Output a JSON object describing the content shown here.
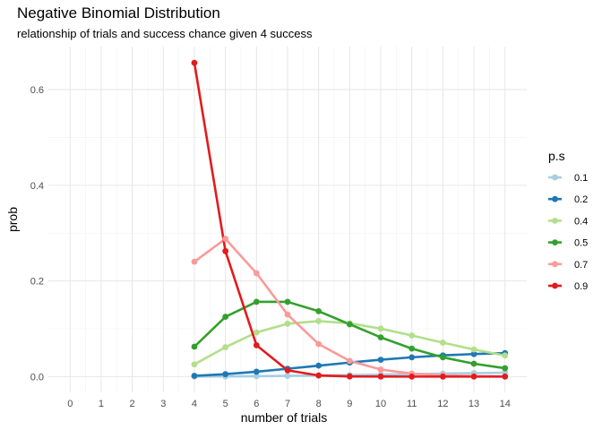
{
  "chart_data": {
    "type": "line",
    "title": "Negative Binomial Distribution",
    "subtitle": "relationship of trials and success chance given 4 success",
    "xlabel": "number of trials",
    "ylabel": "prob",
    "x_ticks": [
      0,
      1,
      2,
      3,
      4,
      5,
      6,
      7,
      8,
      9,
      10,
      11,
      12,
      13,
      14
    ],
    "y_ticks": [
      0.0,
      0.2,
      0.4,
      0.6
    ],
    "y_tick_labels": [
      "0.0",
      "0.2",
      "0.4",
      "0.6"
    ],
    "xlim": [
      -0.7,
      14.7
    ],
    "ylim": [
      -0.033,
      0.69
    ],
    "grid": true,
    "legend": {
      "title": "p.s",
      "placement": "right"
    },
    "x": [
      4,
      5,
      6,
      7,
      8,
      9,
      10,
      11,
      12,
      13,
      14
    ],
    "series": [
      {
        "name": "0.1",
        "color": "#a6cee3",
        "values": [
          0.0001,
          0.0004,
          0.0009,
          0.0015,
          0.0023,
          0.0032,
          0.0042,
          0.0052,
          0.0062,
          0.0072,
          0.0082
        ]
      },
      {
        "name": "0.2",
        "color": "#1f78b4",
        "values": [
          0.0016,
          0.0051,
          0.0102,
          0.0164,
          0.0229,
          0.0294,
          0.0352,
          0.0403,
          0.0443,
          0.0472,
          0.0491
        ]
      },
      {
        "name": "0.4",
        "color": "#b2df8a",
        "values": [
          0.0256,
          0.0614,
          0.0922,
          0.1106,
          0.1161,
          0.1115,
          0.1003,
          0.086,
          0.0709,
          0.0567,
          0.0441
        ]
      },
      {
        "name": "0.5",
        "color": "#33a02c",
        "values": [
          0.0625,
          0.125,
          0.1563,
          0.1563,
          0.1367,
          0.1094,
          0.082,
          0.0586,
          0.0403,
          0.0269,
          0.0175
        ]
      },
      {
        "name": "0.7",
        "color": "#fb9a99",
        "values": [
          0.2401,
          0.2881,
          0.2161,
          0.1297,
          0.0681,
          0.0327,
          0.0147,
          0.0063,
          0.0026,
          0.001,
          0.0004
        ]
      },
      {
        "name": "0.9",
        "color": "#e31a1c",
        "values": [
          0.6561,
          0.2624,
          0.0656,
          0.0131,
          0.0023,
          0.0004,
          0.0001,
          0.0,
          0.0,
          0.0,
          0.0
        ]
      }
    ]
  }
}
